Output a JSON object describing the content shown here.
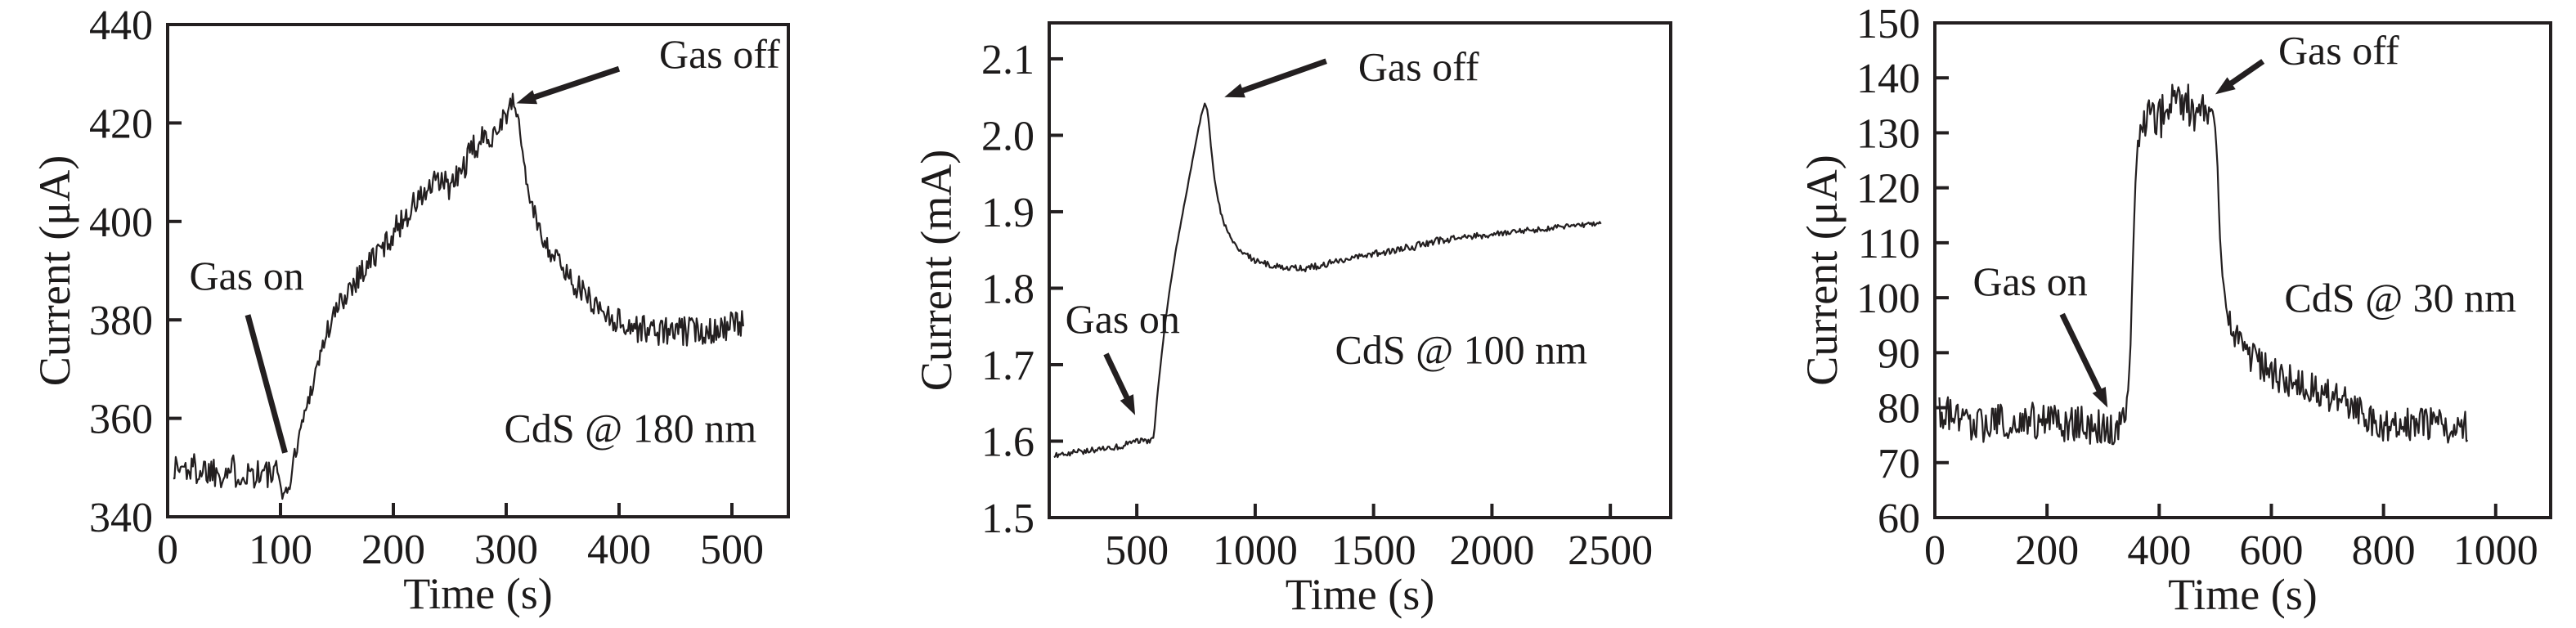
{
  "figure": {
    "background": "#ffffff",
    "ink": "#231f20",
    "description": "Three gas-sensing response curves: current vs time for CdS films"
  },
  "chart_data": [
    {
      "type": "line",
      "id": "cds-180nm",
      "sample_label": "CdS @ 180 nm",
      "xlabel": "Time (s)",
      "ylabel": "Current (μA)",
      "xlim": [
        0,
        550
      ],
      "ylim": [
        340,
        440
      ],
      "x_ticks": [
        0,
        100,
        200,
        300,
        400,
        500
      ],
      "x_tick_labels": [
        "0",
        "100",
        "200",
        "300",
        "400",
        "500"
      ],
      "y_ticks": [
        340,
        360,
        380,
        400,
        420,
        440
      ],
      "y_tick_labels": [
        "340",
        "360",
        "380",
        "400",
        "420",
        "440"
      ],
      "grid": false,
      "legend": null,
      "label_at": [
        410,
        358
      ],
      "annotations": [
        {
          "name": "gas-on",
          "text": "Gas on",
          "text_at": [
            70,
            389
          ],
          "arrow_from": [
            71,
            381
          ],
          "arrow_to": [
            104,
            353
          ],
          "head": false
        },
        {
          "name": "gas-off",
          "text": "Gas off",
          "text_at": [
            489,
            434
          ],
          "arrow_from": [
            400,
            431
          ],
          "arrow_to": [
            309,
            424
          ],
          "head": true
        }
      ],
      "series": [
        {
          "name": "current-uA",
          "points": [
            [
              5,
              350,
              3.5
            ],
            [
              40,
              349.5,
              3.5
            ],
            [
              80,
              349,
              3.5
            ],
            [
              98,
              348,
              3.5
            ],
            [
              104,
              344.5,
              1.5
            ],
            [
              108,
              346,
              1
            ],
            [
              112,
              352,
              1.5
            ],
            [
              118,
              358,
              2
            ],
            [
              126,
              365,
              2
            ],
            [
              134,
              372,
              2
            ],
            [
              142,
              378,
              2.5
            ],
            [
              152,
              383,
              2.5
            ],
            [
              165,
              388,
              3
            ],
            [
              180,
              392,
              3
            ],
            [
              195,
              396,
              2.5
            ],
            [
              210,
              401,
              3
            ],
            [
              225,
              405,
              3
            ],
            [
              240,
              408,
              3
            ],
            [
              252,
              407,
              3
            ],
            [
              262,
              411,
              3
            ],
            [
              272,
              415,
              3
            ],
            [
              282,
              417,
              3
            ],
            [
              292,
              419,
              3
            ],
            [
              300,
              422,
              2.5
            ],
            [
              306,
              424,
              2
            ],
            [
              310,
              422,
              1.5
            ],
            [
              314,
              415,
              1
            ],
            [
              318,
              408,
              1.5
            ],
            [
              324,
              402,
              2
            ],
            [
              332,
              397,
              2
            ],
            [
              342,
              393,
              2.5
            ],
            [
              352,
              390,
              2.5
            ],
            [
              362,
              387,
              2.5
            ],
            [
              375,
              384,
              2.5
            ],
            [
              390,
              381,
              2.5
            ],
            [
              405,
              379,
              3
            ],
            [
              425,
              378,
              3
            ],
            [
              450,
              377.5,
              3
            ],
            [
              475,
              378,
              3
            ],
            [
              510,
              379,
              3
            ]
          ]
        }
      ]
    },
    {
      "type": "line",
      "id": "cds-100nm",
      "sample_label": "CdS @ 100 nm",
      "xlabel": "Time (s)",
      "ylabel": "Current (mA)",
      "xlim": [
        130,
        2755
      ],
      "ylim": [
        1.5,
        2.147
      ],
      "x_ticks": [
        500,
        1000,
        1500,
        2000,
        2500
      ],
      "x_tick_labels": [
        "500",
        "1000",
        "1500",
        "2000",
        "2500"
      ],
      "y_ticks": [
        1.5,
        1.6,
        1.7,
        1.8,
        1.9,
        2.0,
        2.1
      ],
      "y_tick_labels": [
        "1.5",
        "1.6",
        "1.7",
        "1.8",
        "1.9",
        "2.0",
        "2.1"
      ],
      "grid": false,
      "legend": null,
      "label_at": [
        1870,
        1.72
      ],
      "annotations": [
        {
          "name": "gas-on",
          "text": "Gas on",
          "text_at": [
            440,
            1.76
          ],
          "arrow_from": [
            370,
            1.714
          ],
          "arrow_to": [
            493,
            1.634
          ],
          "head": true
        },
        {
          "name": "gas-off",
          "text": "Gas off",
          "text_at": [
            1690,
            2.09
          ],
          "arrow_from": [
            1300,
            2.097
          ],
          "arrow_to": [
            870,
            2.05
          ],
          "head": true
        }
      ],
      "series": [
        {
          "name": "current-mA",
          "points": [
            [
              150,
              1.582,
              0.004
            ],
            [
              250,
              1.586,
              0.004
            ],
            [
              350,
              1.59,
              0.004
            ],
            [
              440,
              1.594,
              0.004
            ],
            [
              470,
              1.6,
              0.003
            ],
            [
              530,
              1.6,
              0.004
            ],
            [
              560,
              1.601,
              0.003
            ],
            [
              572,
              1.605,
              0.001
            ],
            [
              578,
              1.63,
              0.001
            ],
            [
              585,
              1.655,
              0.001
            ],
            [
              600,
              1.7,
              0.001
            ],
            [
              620,
              1.755,
              0.001
            ],
            [
              640,
              1.8,
              0.001
            ],
            [
              665,
              1.85,
              0.001
            ],
            [
              695,
              1.9,
              0.001
            ],
            [
              725,
              1.95,
              0.001
            ],
            [
              755,
              2.0,
              0.001
            ],
            [
              775,
              2.03,
              0.001
            ],
            [
              788,
              2.042,
              0.001
            ],
            [
              800,
              2.03,
              0.001
            ],
            [
              812,
              1.99,
              0.001
            ],
            [
              825,
              1.95,
              0.001
            ],
            [
              840,
              1.92,
              0.003
            ],
            [
              860,
              1.893,
              0.003
            ],
            [
              885,
              1.872,
              0.003
            ],
            [
              915,
              1.856,
              0.003
            ],
            [
              950,
              1.845,
              0.004
            ],
            [
              1000,
              1.836,
              0.004
            ],
            [
              1060,
              1.83,
              0.004
            ],
            [
              1130,
              1.827,
              0.004
            ],
            [
              1200,
              1.826,
              0.005
            ],
            [
              1280,
              1.83,
              0.005
            ],
            [
              1360,
              1.837,
              0.005
            ],
            [
              1440,
              1.842,
              0.004
            ],
            [
              1520,
              1.846,
              0.004
            ],
            [
              1600,
              1.85,
              0.005
            ],
            [
              1680,
              1.855,
              0.005
            ],
            [
              1760,
              1.861,
              0.005
            ],
            [
              1840,
              1.865,
              0.004
            ],
            [
              1920,
              1.868,
              0.004
            ],
            [
              2000,
              1.87,
              0.004
            ],
            [
              2080,
              1.873,
              0.004
            ],
            [
              2160,
              1.876,
              0.004
            ],
            [
              2240,
              1.878,
              0.004
            ],
            [
              2320,
              1.881,
              0.003
            ],
            [
              2400,
              1.883,
              0.003
            ],
            [
              2460,
              1.884,
              0.003
            ]
          ]
        }
      ]
    },
    {
      "type": "line",
      "id": "cds-30nm",
      "sample_label": "CdS @ 30 nm",
      "xlabel": "Time (s)",
      "ylabel": "Current (μA)",
      "xlim": [
        0,
        1098
      ],
      "ylim": [
        60,
        150
      ],
      "x_ticks": [
        0,
        200,
        400,
        600,
        800,
        1000
      ],
      "x_tick_labels": [
        "0",
        "200",
        "400",
        "600",
        "800",
        "1000"
      ],
      "y_ticks": [
        60,
        70,
        80,
        90,
        100,
        110,
        120,
        130,
        140,
        150
      ],
      "y_tick_labels": [
        "60",
        "70",
        "80",
        "90",
        "100",
        "110",
        "120",
        "130",
        "140",
        "150"
      ],
      "grid": false,
      "legend": null,
      "label_at": [
        830,
        100
      ],
      "annotations": [
        {
          "name": "gas-on",
          "text": "Gas on",
          "text_at": [
            170,
            103
          ],
          "arrow_from": [
            227,
            97
          ],
          "arrow_to": [
            308,
            80
          ],
          "head": true
        },
        {
          "name": "gas-off",
          "text": "Gas off",
          "text_at": [
            720,
            145
          ],
          "arrow_from": [
            585,
            143
          ],
          "arrow_to": [
            500,
            137
          ],
          "head": true
        }
      ],
      "series": [
        {
          "name": "current-uA",
          "points": [
            [
              8,
              79,
              3.5
            ],
            [
              40,
              78,
              3.5
            ],
            [
              70,
              76.5,
              3.5
            ],
            [
              100,
              77,
              3.5
            ],
            [
              130,
              77.5,
              3.5
            ],
            [
              160,
              78,
              3.5
            ],
            [
              190,
              77,
              3.5
            ],
            [
              220,
              77.5,
              3.5
            ],
            [
              250,
              77,
              3.5
            ],
            [
              280,
              76.5,
              3.5
            ],
            [
              310,
              76,
              3.5
            ],
            [
              330,
              77,
              3
            ],
            [
              342,
              79,
              2.5
            ],
            [
              348,
              88,
              0.5
            ],
            [
              352,
              103,
              0.5
            ],
            [
              356,
              116,
              0.5
            ],
            [
              360,
              126,
              1
            ],
            [
              365,
              130,
              2.5
            ],
            [
              372,
              132,
              3
            ],
            [
              382,
              133,
              3.5
            ],
            [
              395,
              132,
              3.5
            ],
            [
              410,
              134,
              4.5
            ],
            [
              425,
              135,
              4.5
            ],
            [
              440,
              137,
              4
            ],
            [
              455,
              134,
              4.5
            ],
            [
              468,
              135,
              4
            ],
            [
              480,
              133,
              3.5
            ],
            [
              492,
              135,
              2.5
            ],
            [
              500,
              132,
              1.5
            ],
            [
              504,
              124,
              0.5
            ],
            [
              508,
              112,
              0.5
            ],
            [
              512,
              104,
              1
            ],
            [
              518,
              99,
              2
            ],
            [
              526,
              96,
              2.5
            ],
            [
              536,
              93,
              3
            ],
            [
              550,
              91,
              3
            ],
            [
              565,
              89,
              3
            ],
            [
              580,
              88,
              3
            ],
            [
              600,
              86.5,
              3
            ],
            [
              625,
              85,
              3
            ],
            [
              650,
              84.5,
              3
            ],
            [
              680,
              83.5,
              3.5
            ],
            [
              710,
              82,
              3.5
            ],
            [
              740,
              80.5,
              3
            ],
            [
              770,
              78,
              3
            ],
            [
              800,
              76.5,
              3
            ],
            [
              830,
              76.5,
              3
            ],
            [
              860,
              77.5,
              3
            ],
            [
              890,
              77,
              3
            ],
            [
              920,
              76,
              3
            ],
            [
              950,
              76.5,
              3
            ]
          ]
        }
      ]
    }
  ]
}
